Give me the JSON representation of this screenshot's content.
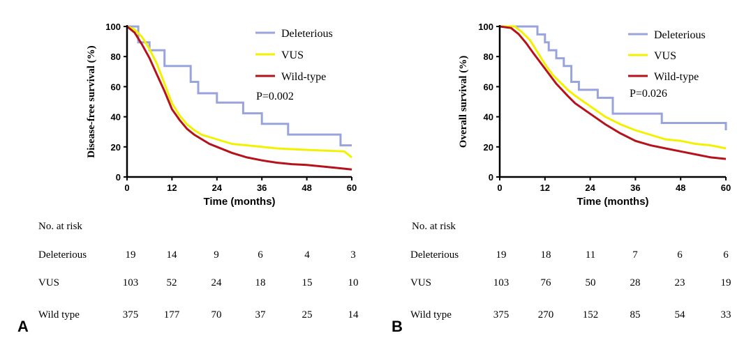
{
  "colors": {
    "Deleterious": "#99a4dd",
    "VUS": "#f2f200",
    "Wild-type": "#b5121b"
  },
  "chart_data": [
    {
      "type": "line",
      "panel": "A",
      "title": "",
      "xlabel": "Time (months)",
      "ylabel": "Disease-free survival (%)",
      "xlim": [
        0,
        60
      ],
      "ylim": [
        0,
        100
      ],
      "xticks": [
        "0",
        "12",
        "24",
        "36",
        "48",
        "60"
      ],
      "yticks": [
        "0",
        "20",
        "40",
        "60",
        "80",
        "100"
      ],
      "legend_position": "top-right",
      "annotation": "P=0.002",
      "series": [
        {
          "name": "Deleterious",
          "x": [
            0,
            3,
            3,
            6,
            6,
            10,
            10,
            17,
            17,
            19,
            19,
            24,
            24,
            31,
            31,
            36,
            36,
            43,
            43,
            57,
            57,
            60
          ],
          "y": [
            100,
            100,
            89.5,
            89.5,
            84.2,
            84.2,
            73.7,
            73.7,
            63.2,
            63.2,
            55.6,
            55.6,
            49.4,
            49.4,
            42.3,
            42.3,
            35.3,
            35.3,
            28.2,
            28.2,
            21,
            21
          ]
        },
        {
          "name": "VUS",
          "x": [
            0,
            2,
            4,
            6,
            8,
            10,
            12,
            14,
            16,
            18,
            20,
            24,
            28,
            32,
            36,
            40,
            48,
            58,
            59,
            60
          ],
          "y": [
            100,
            98,
            93,
            85,
            75,
            62,
            49,
            41,
            35,
            31,
            28,
            25,
            22,
            21,
            20,
            19,
            18,
            17,
            15,
            13
          ]
        },
        {
          "name": "Wild-type",
          "x": [
            0,
            2,
            4,
            6,
            8,
            10,
            12,
            14,
            16,
            18,
            20,
            22,
            24,
            28,
            32,
            36,
            40,
            44,
            48,
            52,
            56,
            60
          ],
          "y": [
            100,
            96,
            88,
            79,
            68,
            57,
            45,
            38,
            32,
            28,
            25,
            22,
            20,
            16,
            13,
            11,
            9.5,
            8.5,
            8,
            7,
            6,
            5
          ]
        }
      ],
      "risk_table": {
        "header": "No. at risk",
        "rows": [
          {
            "label": "Deleterious",
            "values": [
              "19",
              "14",
              "9",
              "6",
              "4",
              "3"
            ]
          },
          {
            "label": "VUS",
            "values": [
              "103",
              "52",
              "24",
              "18",
              "15",
              "10"
            ]
          },
          {
            "label": "Wild type",
            "values": [
              "375",
              "177",
              "70",
              "37",
              "25",
              "14"
            ]
          }
        ]
      }
    },
    {
      "type": "line",
      "panel": "B",
      "title": "",
      "xlabel": "Time (months)",
      "ylabel": "Overall survival (%)",
      "xlim": [
        0,
        60
      ],
      "ylim": [
        0,
        100
      ],
      "xticks": [
        "0",
        "12",
        "24",
        "36",
        "48",
        "60"
      ],
      "yticks": [
        "0",
        "20",
        "40",
        "60",
        "80",
        "100"
      ],
      "legend_position": "top-right",
      "annotation": "P=0.026",
      "series": [
        {
          "name": "Deleterious",
          "x": [
            0,
            6,
            6,
            10,
            10,
            12,
            12,
            13,
            13,
            15,
            15,
            17,
            17,
            19,
            19,
            21,
            21,
            26,
            26,
            30,
            30,
            43,
            43,
            60,
            60
          ],
          "y": [
            100,
            100,
            100,
            100,
            94.7,
            94.7,
            89.5,
            89.5,
            84.2,
            84.2,
            78.9,
            78.9,
            73.7,
            73.7,
            63.2,
            63.2,
            57.9,
            57.9,
            52.6,
            52.6,
            42.1,
            42.1,
            35.9,
            35.9,
            31
          ]
        },
        {
          "name": "VUS",
          "x": [
            0,
            4,
            6,
            8,
            10,
            12,
            14,
            16,
            18,
            20,
            24,
            28,
            32,
            36,
            40,
            44,
            48,
            52,
            56,
            60
          ],
          "y": [
            100,
            100,
            96,
            91,
            83,
            75,
            68,
            63,
            58,
            54,
            47,
            40,
            35,
            31,
            28,
            25,
            24,
            22,
            21,
            19
          ]
        },
        {
          "name": "Wild-type",
          "x": [
            0,
            3,
            5,
            7,
            9,
            12,
            15,
            18,
            20,
            24,
            28,
            32,
            36,
            40,
            44,
            48,
            52,
            56,
            60
          ],
          "y": [
            100,
            99,
            95,
            89,
            82,
            72,
            62,
            54,
            49,
            42,
            35,
            29,
            24,
            21,
            19,
            17,
            15,
            13,
            12
          ]
        }
      ],
      "risk_table": {
        "header": "No. at risk",
        "rows": [
          {
            "label": "Deleterious",
            "values": [
              "19",
              "18",
              "11",
              "7",
              "6",
              "6"
            ]
          },
          {
            "label": "VUS",
            "values": [
              "103",
              "76",
              "50",
              "28",
              "23",
              "19"
            ]
          },
          {
            "label": "Wild type",
            "values": [
              "375",
              "270",
              "152",
              "85",
              "54",
              "33"
            ]
          }
        ]
      }
    }
  ]
}
